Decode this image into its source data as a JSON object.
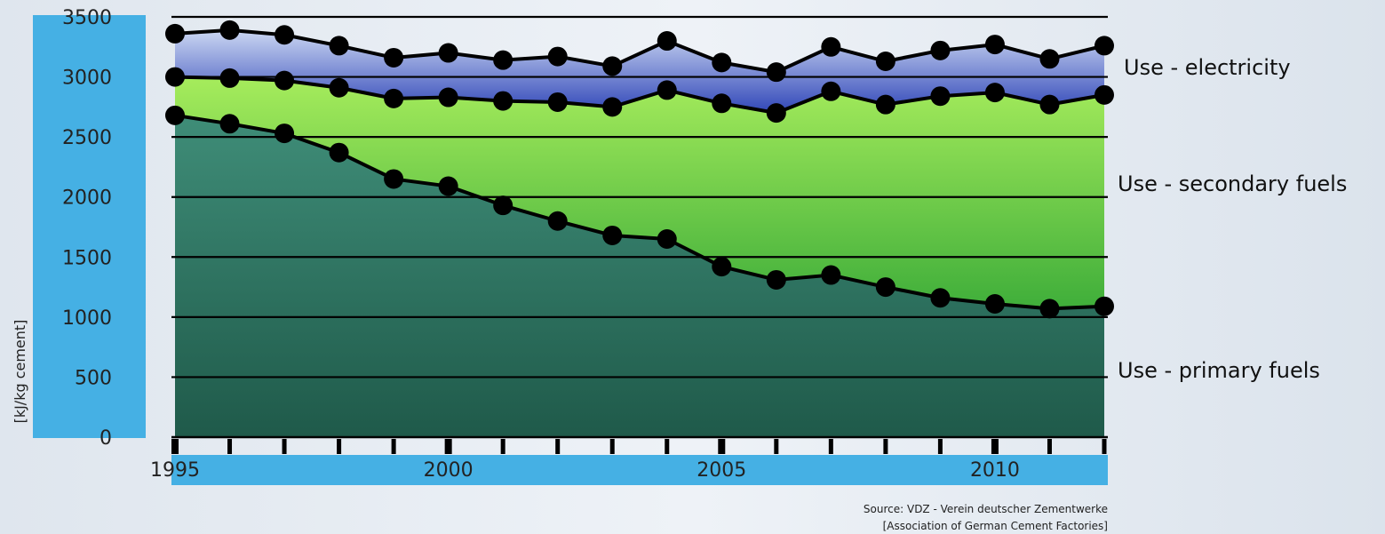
{
  "colors": {
    "axis_bar": "#45b0e4",
    "primary_fill": "#2e7a67",
    "secondary_fill": "#6fcf3d",
    "electricity_fill": "#4a5fc9",
    "line": "#000000",
    "background": "#e9eef4"
  },
  "chart_data": {
    "type": "area",
    "title": "",
    "xlabel": "",
    "ylabel": "[kJ/kg cement]",
    "xlim": [
      1995,
      2012
    ],
    "ylim": [
      0,
      3500
    ],
    "grid": true,
    "yticks": [
      0,
      500,
      1000,
      1500,
      2000,
      2500,
      3000,
      3500
    ],
    "xtick_labels": [
      1995,
      2000,
      2005,
      2010
    ],
    "x": [
      1995,
      1996,
      1997,
      1998,
      1999,
      2000,
      2001,
      2002,
      2003,
      2004,
      2005,
      2006,
      2007,
      2008,
      2009,
      2010,
      2011,
      2012
    ],
    "series": [
      {
        "name": "Use - primary fuels",
        "boundary_values": [
          2680,
          2610,
          2530,
          2370,
          2150,
          2090,
          1930,
          1800,
          1680,
          1650,
          1420,
          1310,
          1350,
          1250,
          1160,
          1110,
          1070,
          1090
        ]
      },
      {
        "name": "Use - secondary fuels",
        "boundary_values": [
          3000,
          2990,
          2970,
          2910,
          2820,
          2830,
          2800,
          2790,
          2750,
          2890,
          2780,
          2700,
          2880,
          2770,
          2840,
          2870,
          2770,
          2850
        ]
      },
      {
        "name": "Use - electricity",
        "boundary_values": [
          3360,
          3390,
          3350,
          3260,
          3160,
          3200,
          3140,
          3170,
          3090,
          3300,
          3120,
          3040,
          3250,
          3130,
          3220,
          3270,
          3150,
          3260
        ]
      }
    ],
    "source_line1": "Source: VDZ - Verein deutscher Zementwerke",
    "source_line2": "[Association of German Cement Factories]"
  }
}
